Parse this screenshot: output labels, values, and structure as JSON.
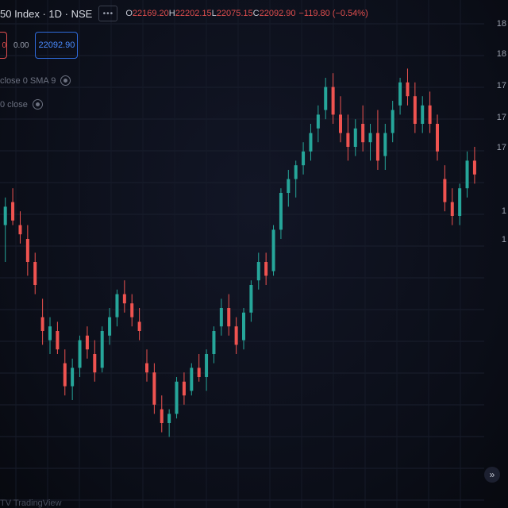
{
  "header": {
    "symbol": "50 Index · 1D · NSE",
    "settings_icon": "more-icon",
    "ohlc": {
      "o_label": "O",
      "o_value": "22169.20",
      "h_label": "H",
      "h_value": "22202.15",
      "l_label": "L",
      "l_value": "22075.15",
      "c_label": "C",
      "c_value": "22092.90",
      "change": "−119.80 (−0.54%)"
    }
  },
  "trade": {
    "sell_label": "0",
    "spread": "0.00",
    "buy_price": "22092.90"
  },
  "indicators": [
    {
      "label": "close 0 SMA 9"
    },
    {
      "label": "0 close"
    }
  ],
  "axis": {
    "labels": [
      "18",
      "18",
      "17",
      "17",
      "17",
      "1",
      "1"
    ]
  },
  "footer": {
    "watermark": "TV TradingView"
  },
  "colors": {
    "up": "#26a69a",
    "down": "#ef5350",
    "bg": "#0b0e18",
    "accent": "#2f6bdc"
  },
  "chart_data": {
    "type": "candlestick",
    "candles": [
      {
        "o": 0.58,
        "h": 0.64,
        "l": 0.5,
        "c": 0.62,
        "dir": "up"
      },
      {
        "o": 0.63,
        "h": 0.66,
        "l": 0.58,
        "c": 0.59,
        "dir": "down"
      },
      {
        "o": 0.58,
        "h": 0.61,
        "l": 0.54,
        "c": 0.56,
        "dir": "down"
      },
      {
        "o": 0.55,
        "h": 0.58,
        "l": 0.47,
        "c": 0.5,
        "dir": "down"
      },
      {
        "o": 0.5,
        "h": 0.52,
        "l": 0.43,
        "c": 0.45,
        "dir": "down"
      },
      {
        "o": 0.38,
        "h": 0.42,
        "l": 0.32,
        "c": 0.35,
        "dir": "down"
      },
      {
        "o": 0.33,
        "h": 0.38,
        "l": 0.3,
        "c": 0.36,
        "dir": "up"
      },
      {
        "o": 0.35,
        "h": 0.37,
        "l": 0.3,
        "c": 0.31,
        "dir": "down"
      },
      {
        "o": 0.28,
        "h": 0.31,
        "l": 0.21,
        "c": 0.23,
        "dir": "down"
      },
      {
        "o": 0.23,
        "h": 0.29,
        "l": 0.2,
        "c": 0.27,
        "dir": "up"
      },
      {
        "o": 0.27,
        "h": 0.34,
        "l": 0.25,
        "c": 0.33,
        "dir": "up"
      },
      {
        "o": 0.34,
        "h": 0.36,
        "l": 0.29,
        "c": 0.31,
        "dir": "down"
      },
      {
        "o": 0.3,
        "h": 0.33,
        "l": 0.24,
        "c": 0.26,
        "dir": "down"
      },
      {
        "o": 0.27,
        "h": 0.36,
        "l": 0.26,
        "c": 0.35,
        "dir": "up"
      },
      {
        "o": 0.34,
        "h": 0.4,
        "l": 0.32,
        "c": 0.38,
        "dir": "up"
      },
      {
        "o": 0.38,
        "h": 0.44,
        "l": 0.36,
        "c": 0.43,
        "dir": "up"
      },
      {
        "o": 0.43,
        "h": 0.46,
        "l": 0.39,
        "c": 0.41,
        "dir": "down"
      },
      {
        "o": 0.41,
        "h": 0.43,
        "l": 0.36,
        "c": 0.38,
        "dir": "down"
      },
      {
        "o": 0.37,
        "h": 0.4,
        "l": 0.33,
        "c": 0.35,
        "dir": "down"
      },
      {
        "o": 0.28,
        "h": 0.31,
        "l": 0.24,
        "c": 0.26,
        "dir": "down"
      },
      {
        "o": 0.26,
        "h": 0.28,
        "l": 0.17,
        "c": 0.19,
        "dir": "down"
      },
      {
        "o": 0.18,
        "h": 0.21,
        "l": 0.13,
        "c": 0.15,
        "dir": "down"
      },
      {
        "o": 0.15,
        "h": 0.18,
        "l": 0.12,
        "c": 0.17,
        "dir": "up"
      },
      {
        "o": 0.17,
        "h": 0.25,
        "l": 0.16,
        "c": 0.24,
        "dir": "up"
      },
      {
        "o": 0.24,
        "h": 0.26,
        "l": 0.19,
        "c": 0.21,
        "dir": "down"
      },
      {
        "o": 0.22,
        "h": 0.28,
        "l": 0.21,
        "c": 0.27,
        "dir": "up"
      },
      {
        "o": 0.27,
        "h": 0.3,
        "l": 0.24,
        "c": 0.25,
        "dir": "down"
      },
      {
        "o": 0.25,
        "h": 0.31,
        "l": 0.22,
        "c": 0.3,
        "dir": "up"
      },
      {
        "o": 0.3,
        "h": 0.36,
        "l": 0.28,
        "c": 0.35,
        "dir": "up"
      },
      {
        "o": 0.36,
        "h": 0.42,
        "l": 0.34,
        "c": 0.4,
        "dir": "up"
      },
      {
        "o": 0.4,
        "h": 0.43,
        "l": 0.34,
        "c": 0.36,
        "dir": "down"
      },
      {
        "o": 0.36,
        "h": 0.38,
        "l": 0.3,
        "c": 0.32,
        "dir": "down"
      },
      {
        "o": 0.33,
        "h": 0.4,
        "l": 0.31,
        "c": 0.39,
        "dir": "up"
      },
      {
        "o": 0.39,
        "h": 0.46,
        "l": 0.37,
        "c": 0.45,
        "dir": "up"
      },
      {
        "o": 0.46,
        "h": 0.52,
        "l": 0.44,
        "c": 0.5,
        "dir": "up"
      },
      {
        "o": 0.5,
        "h": 0.52,
        "l": 0.45,
        "c": 0.47,
        "dir": "down"
      },
      {
        "o": 0.48,
        "h": 0.58,
        "l": 0.47,
        "c": 0.57,
        "dir": "up"
      },
      {
        "o": 0.57,
        "h": 0.66,
        "l": 0.55,
        "c": 0.65,
        "dir": "up"
      },
      {
        "o": 0.65,
        "h": 0.7,
        "l": 0.62,
        "c": 0.68,
        "dir": "up"
      },
      {
        "o": 0.68,
        "h": 0.72,
        "l": 0.64,
        "c": 0.71,
        "dir": "up"
      },
      {
        "o": 0.71,
        "h": 0.76,
        "l": 0.69,
        "c": 0.74,
        "dir": "up"
      },
      {
        "o": 0.74,
        "h": 0.8,
        "l": 0.72,
        "c": 0.78,
        "dir": "up"
      },
      {
        "o": 0.79,
        "h": 0.84,
        "l": 0.76,
        "c": 0.82,
        "dir": "up"
      },
      {
        "o": 0.83,
        "h": 0.9,
        "l": 0.81,
        "c": 0.88,
        "dir": "up"
      },
      {
        "o": 0.88,
        "h": 0.91,
        "l": 0.8,
        "c": 0.82,
        "dir": "down"
      },
      {
        "o": 0.82,
        "h": 0.86,
        "l": 0.76,
        "c": 0.78,
        "dir": "down"
      },
      {
        "o": 0.78,
        "h": 0.82,
        "l": 0.72,
        "c": 0.75,
        "dir": "down"
      },
      {
        "o": 0.75,
        "h": 0.81,
        "l": 0.73,
        "c": 0.79,
        "dir": "up"
      },
      {
        "o": 0.8,
        "h": 0.84,
        "l": 0.74,
        "c": 0.76,
        "dir": "down"
      },
      {
        "o": 0.76,
        "h": 0.8,
        "l": 0.72,
        "c": 0.78,
        "dir": "up"
      },
      {
        "o": 0.78,
        "h": 0.83,
        "l": 0.7,
        "c": 0.72,
        "dir": "down"
      },
      {
        "o": 0.73,
        "h": 0.8,
        "l": 0.7,
        "c": 0.78,
        "dir": "up"
      },
      {
        "o": 0.78,
        "h": 0.85,
        "l": 0.76,
        "c": 0.83,
        "dir": "up"
      },
      {
        "o": 0.84,
        "h": 0.9,
        "l": 0.82,
        "c": 0.89,
        "dir": "up"
      },
      {
        "o": 0.89,
        "h": 0.92,
        "l": 0.84,
        "c": 0.86,
        "dir": "down"
      },
      {
        "o": 0.86,
        "h": 0.89,
        "l": 0.78,
        "c": 0.8,
        "dir": "down"
      },
      {
        "o": 0.8,
        "h": 0.86,
        "l": 0.78,
        "c": 0.84,
        "dir": "up"
      },
      {
        "o": 0.84,
        "h": 0.87,
        "l": 0.78,
        "c": 0.8,
        "dir": "down"
      },
      {
        "o": 0.8,
        "h": 0.82,
        "l": 0.72,
        "c": 0.74,
        "dir": "down"
      },
      {
        "o": 0.68,
        "h": 0.71,
        "l": 0.61,
        "c": 0.63,
        "dir": "down"
      },
      {
        "o": 0.63,
        "h": 0.66,
        "l": 0.58,
        "c": 0.6,
        "dir": "down"
      },
      {
        "o": 0.6,
        "h": 0.67,
        "l": 0.58,
        "c": 0.66,
        "dir": "up"
      },
      {
        "o": 0.66,
        "h": 0.74,
        "l": 0.64,
        "c": 0.72,
        "dir": "up"
      },
      {
        "o": 0.72,
        "h": 0.75,
        "l": 0.67,
        "c": 0.69,
        "dir": "down"
      }
    ]
  }
}
